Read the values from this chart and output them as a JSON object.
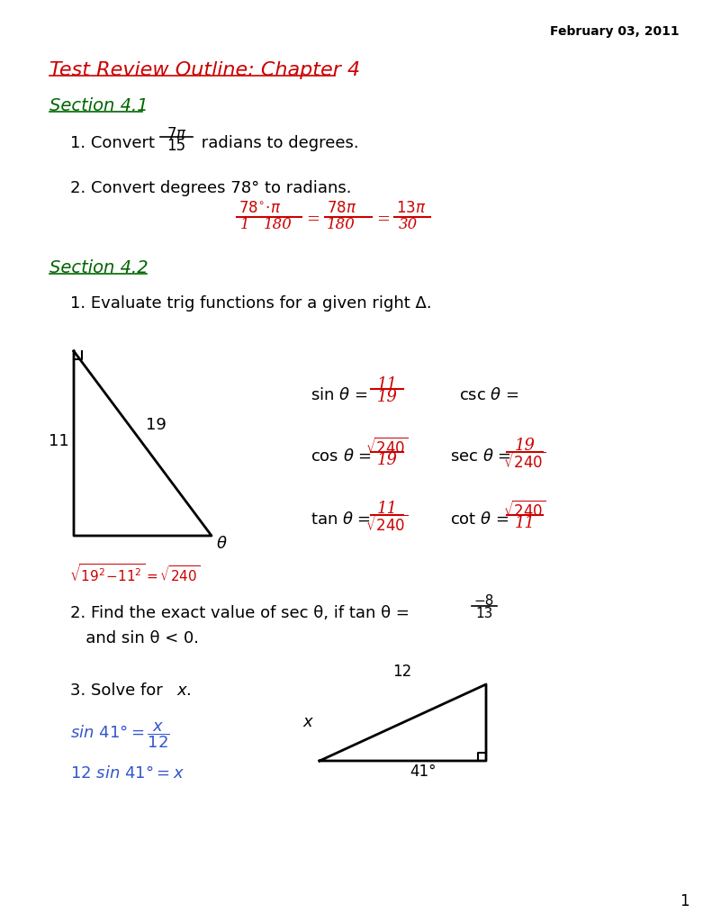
{
  "bg_color": "#ffffff",
  "date_text": "February 03, 2011",
  "title_text": "Test Review Outline: Chapter 4",
  "title_color": "#cc0000",
  "section41_text": "Section 4.1",
  "section_color": "#006600",
  "handwritten_color": "#cc0000",
  "blue_color": "#3355cc",
  "section42_text": "Section 4.2",
  "eval_text": "1. Evaluate trig functions for a given right Δ.",
  "page_num": "1"
}
